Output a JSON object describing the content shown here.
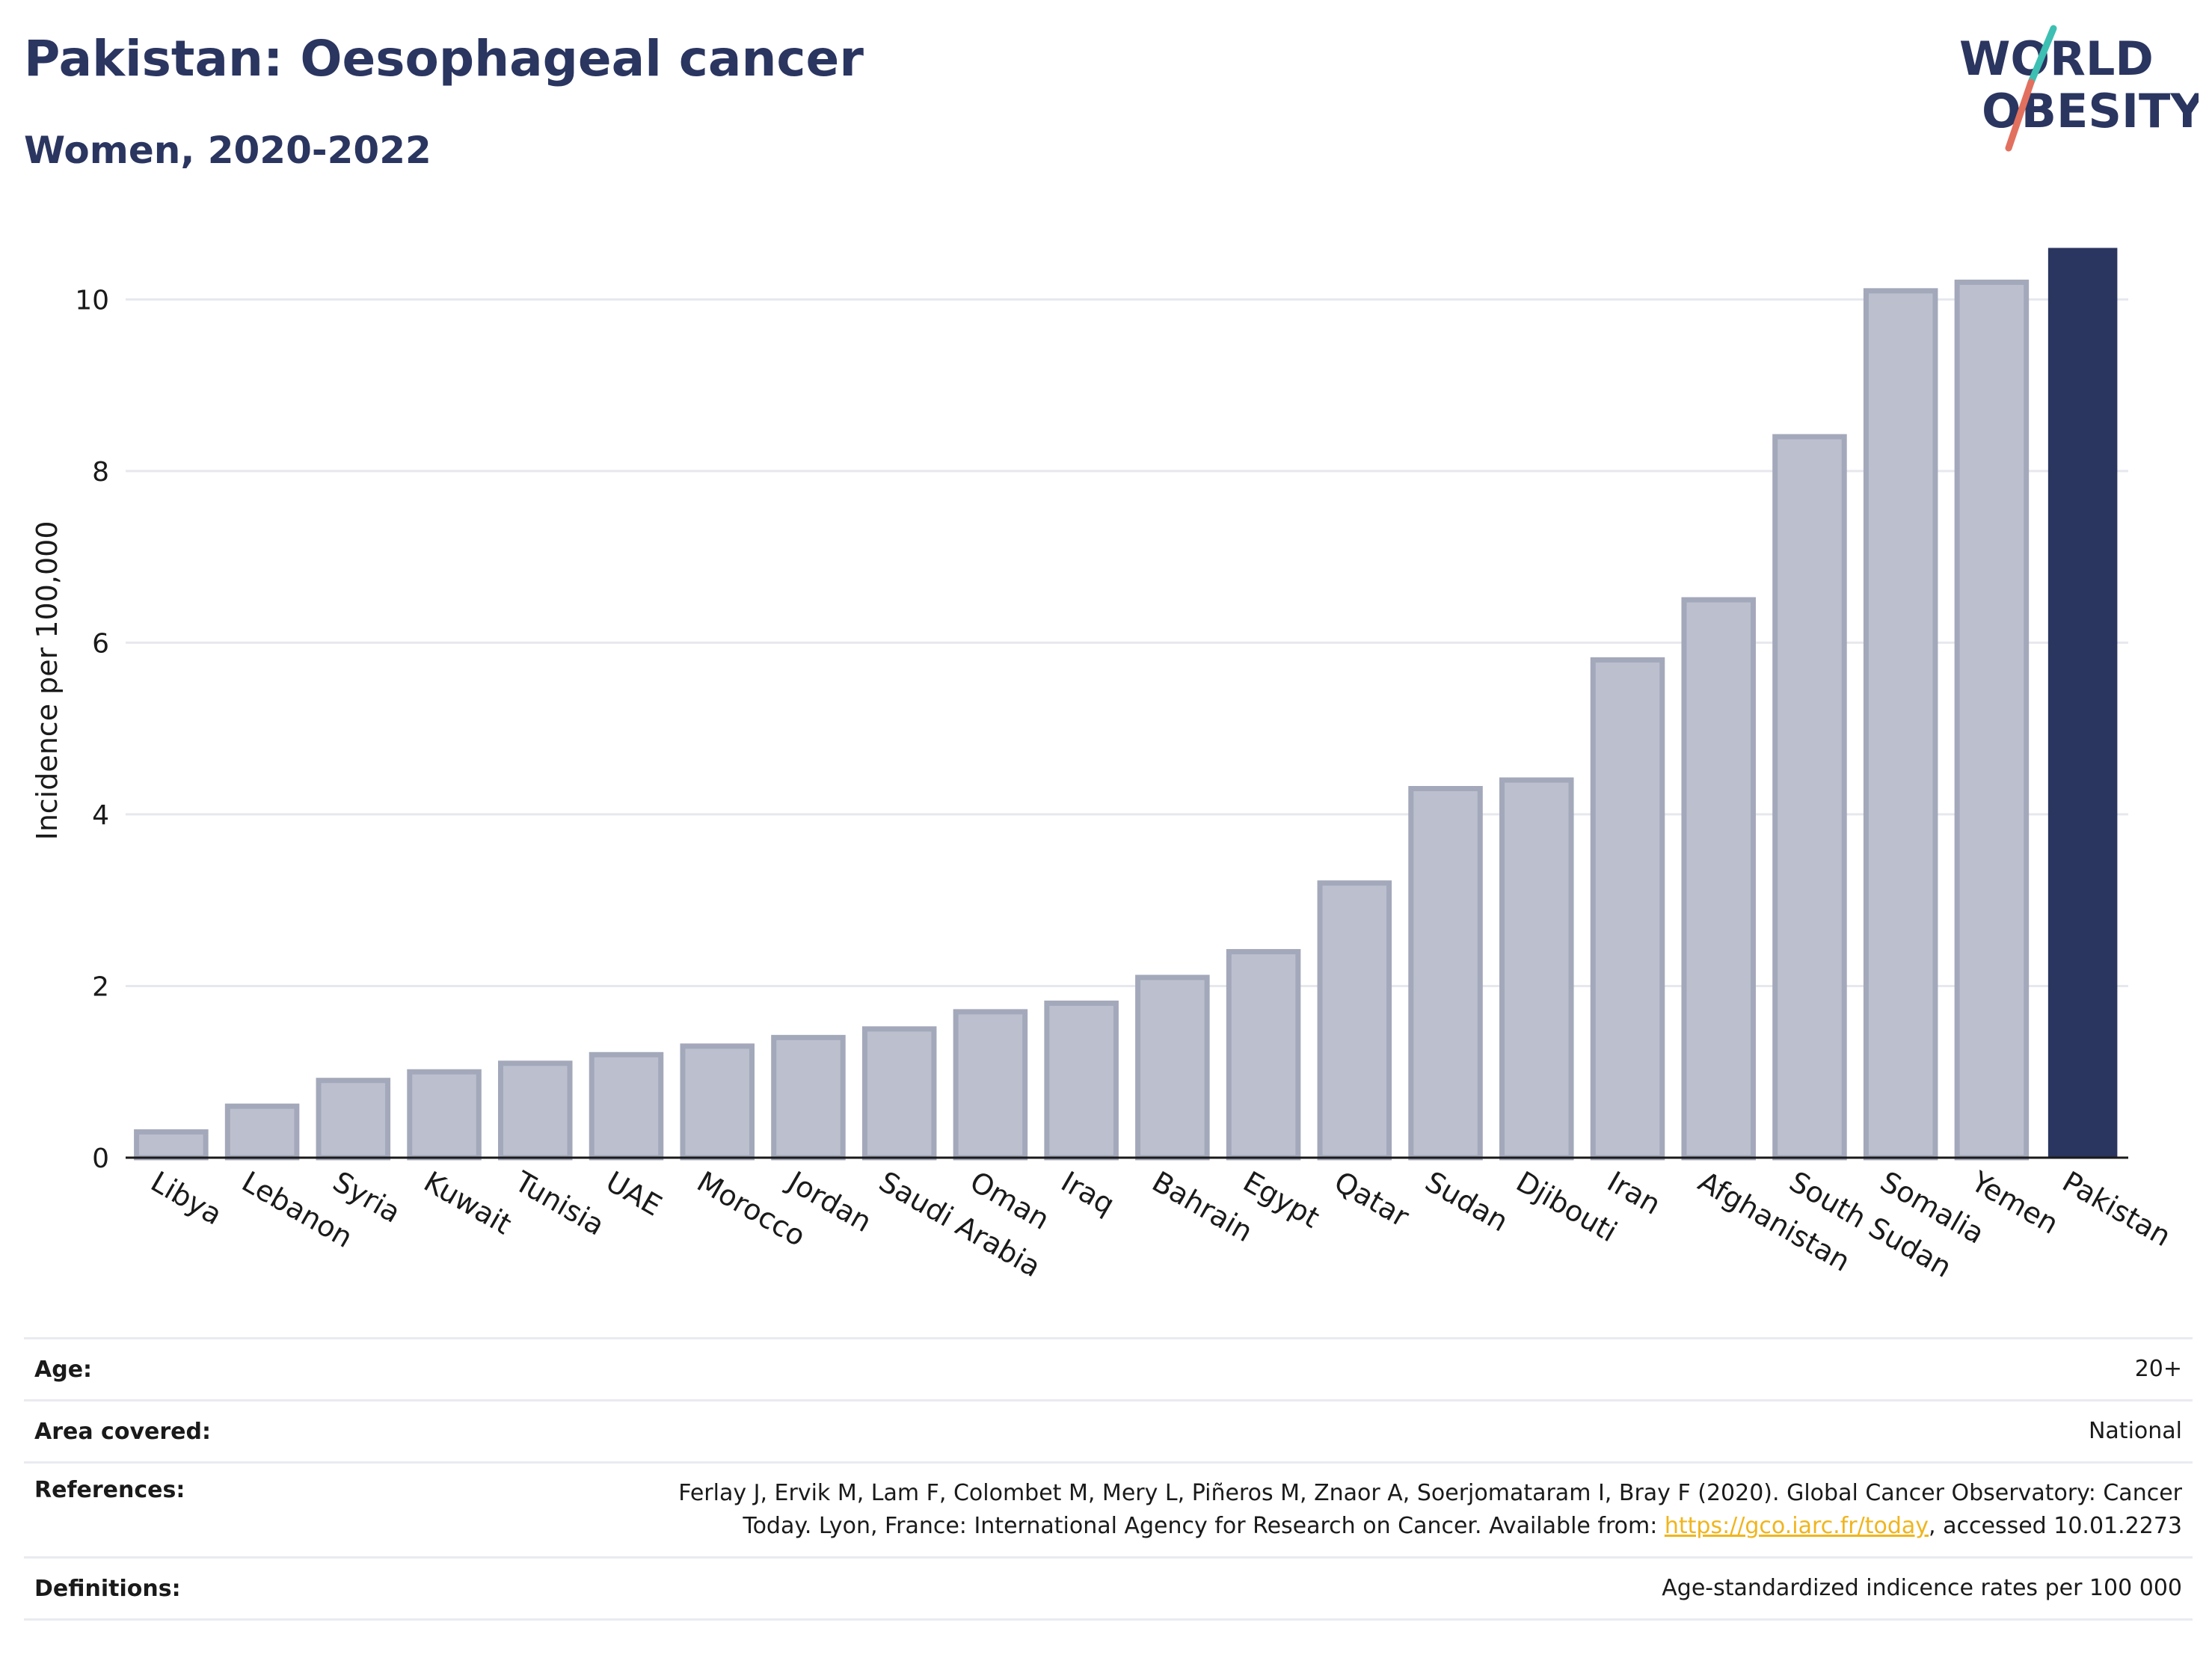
{
  "header": {
    "title": "Pakistan: Oesophageal cancer",
    "subtitle": "Women, 2020-2022"
  },
  "logo": {
    "line1": "WORLD",
    "line2": "OBESITY",
    "accent_colors": [
      "#3dbfb3",
      "#e2705f"
    ]
  },
  "colors": {
    "highlight_bar": "#2a3560",
    "other_bar": "#bcc0ce",
    "other_bar_border": "#a3a8ba",
    "text": "#2a3560"
  },
  "chart_data": {
    "type": "bar",
    "categories": [
      "Libya",
      "Lebanon",
      "Syria",
      "Kuwait",
      "Tunisia",
      "UAE",
      "Morocco",
      "Jordan",
      "Saudi Arabia",
      "Oman",
      "Iraq",
      "Bahrain",
      "Egypt",
      "Qatar",
      "Sudan",
      "Djibouti",
      "Iran",
      "Afghanistan",
      "South Sudan",
      "Somalia",
      "Yemen",
      "Pakistan"
    ],
    "values": [
      0.3,
      0.6,
      0.9,
      1.0,
      1.1,
      1.2,
      1.3,
      1.4,
      1.5,
      1.7,
      1.8,
      2.1,
      2.4,
      3.2,
      4.3,
      4.4,
      5.8,
      6.5,
      8.4,
      10.1,
      10.2,
      10.6
    ],
    "highlight": "Pakistan",
    "ylabel": "Incidence per 100,000",
    "ylim": [
      0,
      10.7
    ],
    "yticks": [
      0,
      2,
      4,
      6,
      8,
      10
    ],
    "grid": true
  },
  "info": {
    "age_label": "Age:",
    "age_value": "20+",
    "area_label": "Area covered:",
    "area_value": "National",
    "references_label": "References:",
    "references_line1": "Ferlay J, Ervik M, Lam F, Colombet M, Mery L, Piñeros M, Znaor A, Soerjomataram I, Bray F (2020). Global Cancer Observatory: Cancer",
    "references_line2_pre": "Today. Lyon, France: International Agency for Research on Cancer. Available from: ",
    "references_link": "https://gco.iarc.fr/today",
    "references_line2_post": ", accessed 10.01.2273",
    "definitions_label": "Definitions:",
    "definitions_value": "Age-standardized indicence rates per 100 000"
  }
}
